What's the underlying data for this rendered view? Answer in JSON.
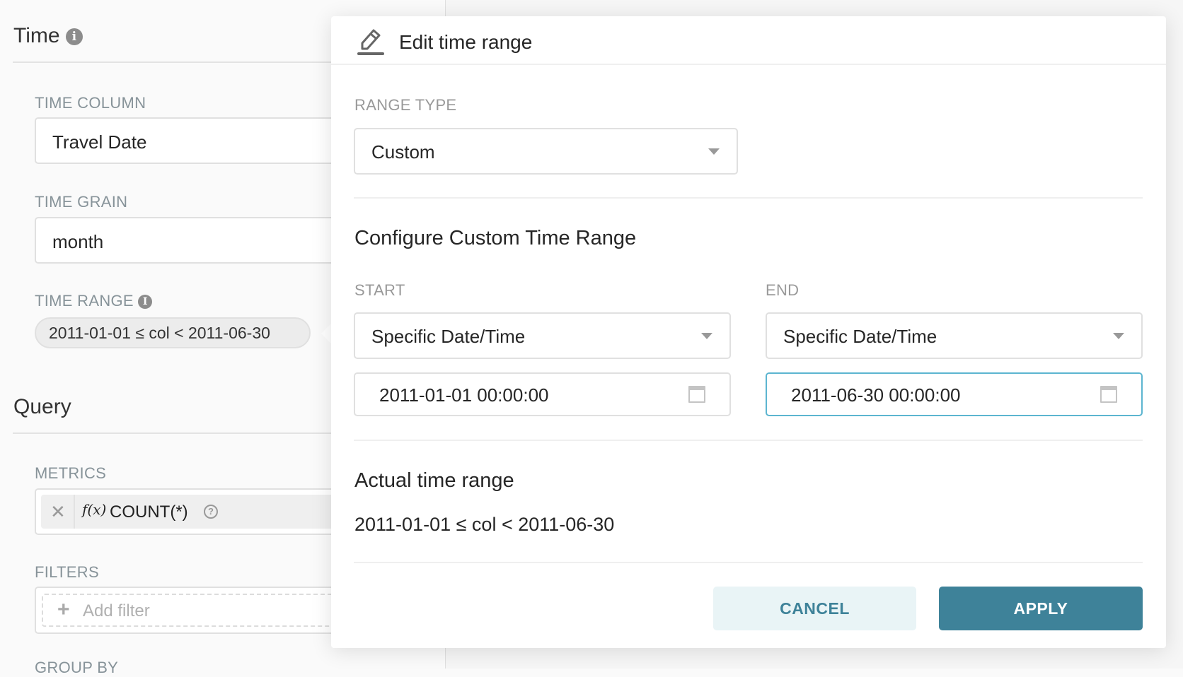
{
  "sidebar": {
    "time_section": {
      "title": "Time",
      "info_icon": "info-circle-icon"
    },
    "time_column": {
      "label": "TIME COLUMN",
      "value": "Travel Date"
    },
    "time_grain": {
      "label": "TIME GRAIN",
      "value": "month"
    },
    "time_range": {
      "label": "TIME RANGE",
      "value": "2011-01-01 ≤ col < 2011-06-30"
    },
    "query_section": {
      "title": "Query"
    },
    "metrics": {
      "label": "METRICS",
      "items": [
        {
          "function_icon": "f(x)",
          "value": "COUNT(*)"
        }
      ]
    },
    "filters": {
      "label": "FILTERS",
      "add_label": "Add filter"
    },
    "group_by": {
      "label": "GROUP BY"
    }
  },
  "popover": {
    "title": "Edit time range",
    "icon": "pencil-icon",
    "range_type": {
      "label": "RANGE TYPE",
      "value": "Custom"
    },
    "custom_heading": "Configure Custom Time Range",
    "start": {
      "label": "START",
      "mode": "Specific Date/Time",
      "datetime": "2011-01-01 00:00:00"
    },
    "end": {
      "label": "END",
      "mode": "Specific Date/Time",
      "datetime": "2011-06-30 00:00:00"
    },
    "actual_heading": "Actual time range",
    "actual_value": "2011-01-01 ≤ col < 2011-06-30",
    "cancel_label": "CANCEL",
    "apply_label": "APPLY"
  },
  "colors": {
    "primary": "#3e8299",
    "primary_light": "#e9f4f6",
    "focus_border": "#5cb5d0"
  }
}
